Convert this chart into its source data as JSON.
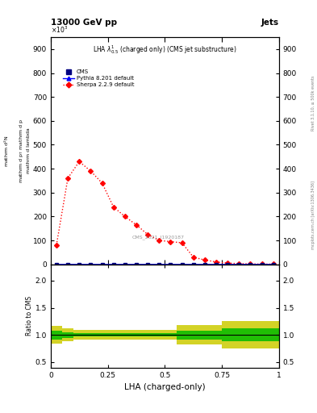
{
  "title_left": "13000 GeV pp",
  "title_right": "Jets",
  "plot_title": "LHA $\\lambda^{1}_{0.5}$ (charged only) (CMS jet substructure)",
  "ylabel_main": "mathrm d N / mathrm d p_{T} mathrm d p mathrm d lambda",
  "ylabel_ratio": "Ratio to CMS",
  "xlabel": "LHA (charged-only)",
  "right_label_top": "Rivet 3.1.10, ≥ 500k events",
  "right_label_bot": "mcplots.cern.ch [arXiv:1306.3436]",
  "watermark": "CMS_2021_I1920187",
  "cms_x": [
    0.025,
    0.075,
    0.125,
    0.175,
    0.225,
    0.275,
    0.325,
    0.375,
    0.425,
    0.475,
    0.525,
    0.575,
    0.625,
    0.675,
    0.725,
    0.775,
    0.825,
    0.875,
    0.925,
    0.975
  ],
  "cms_y": [
    0,
    0,
    0,
    0,
    0,
    0,
    0,
    0,
    0,
    0,
    0,
    0,
    0,
    0,
    0,
    0,
    0,
    0,
    0,
    0
  ],
  "sherpa_x": [
    0.025,
    0.075,
    0.125,
    0.175,
    0.225,
    0.275,
    0.325,
    0.375,
    0.425,
    0.475,
    0.525,
    0.575,
    0.625,
    0.675,
    0.725,
    0.775,
    0.825,
    0.875,
    0.925,
    0.975
  ],
  "sherpa_y": [
    80,
    360,
    430,
    390,
    340,
    240,
    200,
    165,
    125,
    100,
    95,
    90,
    30,
    18,
    10,
    5,
    3,
    2,
    1,
    1
  ],
  "pythia_x": [
    0.025,
    0.075,
    0.125,
    0.175,
    0.225,
    0.275,
    0.325,
    0.375,
    0.425,
    0.475,
    0.525,
    0.575,
    0.625,
    0.675,
    0.725,
    0.775,
    0.825,
    0.875,
    0.925,
    0.975
  ],
  "pythia_y": [
    0,
    0,
    0,
    0,
    0,
    0,
    0,
    0,
    0,
    0,
    0,
    0,
    0,
    0,
    0,
    0,
    0,
    0,
    0,
    0
  ],
  "ylim_main": [
    0,
    950
  ],
  "yticks_main": [
    0,
    100,
    200,
    300,
    400,
    500,
    600,
    700,
    800,
    900
  ],
  "ylim_ratio": [
    0.4,
    2.3
  ],
  "yticks_ratio": [
    0.5,
    1.0,
    1.5,
    2.0
  ],
  "xlim": [
    0.0,
    1.0
  ],
  "xticks": [
    0.0,
    0.25,
    0.5,
    0.75,
    1.0
  ],
  "ratio_band_edges": [
    0.0,
    0.05,
    0.1,
    0.15,
    0.2,
    0.25,
    0.3,
    0.35,
    0.4,
    0.45,
    0.5,
    0.55,
    0.6,
    0.65,
    0.7,
    0.75,
    0.8,
    0.85,
    0.9,
    0.95,
    1.0
  ],
  "ratio_green_lo": [
    0.92,
    0.95,
    0.97,
    0.97,
    0.97,
    0.97,
    0.97,
    0.97,
    0.97,
    0.97,
    0.97,
    0.92,
    0.92,
    0.92,
    0.92,
    0.88,
    0.88,
    0.88,
    0.88,
    0.88
  ],
  "ratio_green_hi": [
    1.08,
    1.05,
    1.03,
    1.03,
    1.03,
    1.03,
    1.03,
    1.03,
    1.03,
    1.03,
    1.03,
    1.08,
    1.08,
    1.08,
    1.08,
    1.12,
    1.12,
    1.12,
    1.12,
    1.12
  ],
  "ratio_yellow_lo": [
    0.84,
    0.88,
    0.91,
    0.91,
    0.91,
    0.91,
    0.91,
    0.91,
    0.91,
    0.91,
    0.91,
    0.82,
    0.82,
    0.82,
    0.82,
    0.75,
    0.75,
    0.75,
    0.75,
    0.75
  ],
  "ratio_yellow_hi": [
    1.16,
    1.12,
    1.09,
    1.09,
    1.09,
    1.09,
    1.09,
    1.09,
    1.09,
    1.09,
    1.09,
    1.18,
    1.18,
    1.18,
    1.18,
    1.25,
    1.25,
    1.25,
    1.25,
    1.25
  ],
  "bg_color": "#ffffff",
  "cms_color": "#000080",
  "sherpa_color": "#ff0000",
  "pythia_color": "#0000ff",
  "green_color": "#00bb00",
  "yellow_color": "#cccc00"
}
